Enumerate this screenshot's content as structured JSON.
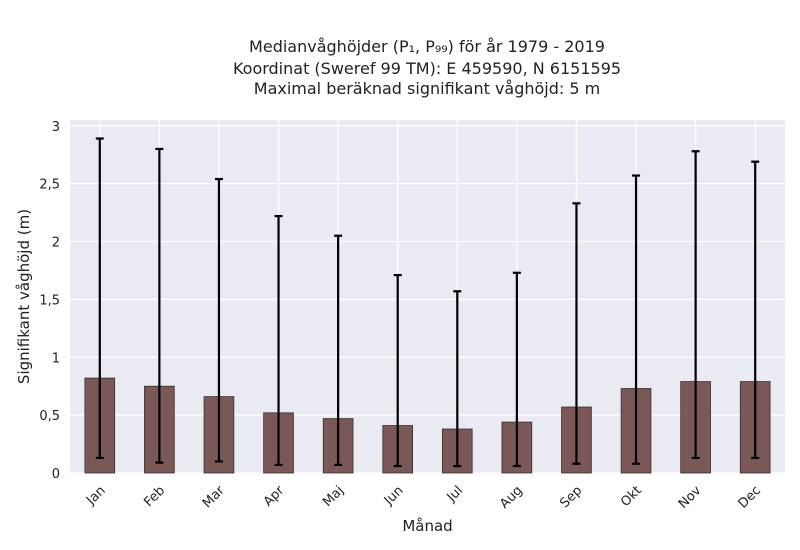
{
  "chart_data": {
    "type": "bar",
    "title_lines": [
      "Medianvåghöjder (P₁, P₉₉) för år 1979 - 2019",
      "Koordinat (Sweref 99 TM): E 459590, N 6151595",
      "Maximal beräknad signifikant våghöjd: 5 m"
    ],
    "xlabel": "Månad",
    "ylabel": "Signifikant våghöjd (m)",
    "categories": [
      "Jan",
      "Feb",
      "Mar",
      "Apr",
      "Maj",
      "Jun",
      "Jul",
      "Aug",
      "Sep",
      "Okt",
      "Nov",
      "Dec"
    ],
    "values": [
      0.82,
      0.75,
      0.66,
      0.52,
      0.47,
      0.41,
      0.38,
      0.44,
      0.57,
      0.73,
      0.79,
      0.79
    ],
    "p1": [
      0.13,
      0.09,
      0.1,
      0.07,
      0.07,
      0.06,
      0.06,
      0.06,
      0.08,
      0.08,
      0.13,
      0.13
    ],
    "p99": [
      2.89,
      2.8,
      2.54,
      2.22,
      2.05,
      1.71,
      1.57,
      1.73,
      2.33,
      2.57,
      2.78,
      2.69
    ],
    "ylim": [
      0,
      3.05
    ],
    "yticks": [
      "0",
      "0,5",
      "1",
      "1,5",
      "2",
      "2,5",
      "3"
    ],
    "ytick_values": [
      0,
      0.5,
      1,
      1.5,
      2,
      2.5,
      3
    ],
    "grid": true,
    "colors": {
      "bar": "#7b5858",
      "bar_edge": "#3a2b2b",
      "plot_bg": "#eaeaf2",
      "grid": "#ffffff",
      "errorbar": "#000000"
    }
  }
}
